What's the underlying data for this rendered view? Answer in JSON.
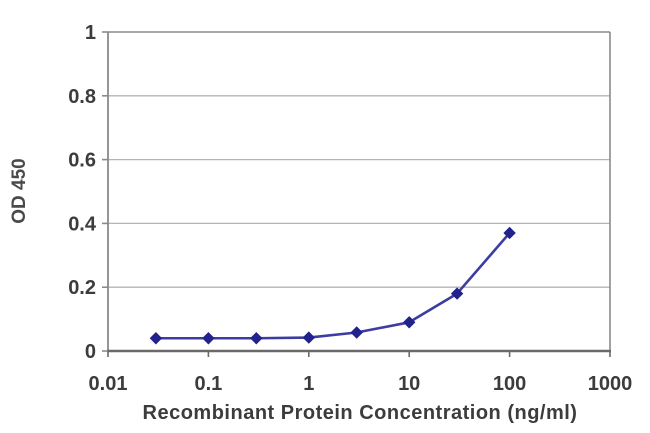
{
  "chart_data": {
    "type": "line",
    "title": "",
    "xlabel": "Recombinant Protein Concentration (ng/ml)",
    "ylabel": "OD 450",
    "x_scale": "log",
    "xlim": [
      0.01,
      1000
    ],
    "ylim": [
      0,
      1
    ],
    "x_ticks": [
      0.01,
      0.1,
      1,
      10,
      100,
      1000
    ],
    "x_tick_labels": [
      "0.01",
      "0.1",
      "1",
      "10",
      "100",
      "1000"
    ],
    "y_ticks": [
      0,
      0.2,
      0.4,
      0.6,
      0.8,
      1
    ],
    "y_tick_labels": [
      "0",
      "0.2",
      "0.4",
      "0.6",
      "0.8",
      "1"
    ],
    "grid": "horizontal-only",
    "legend": "none",
    "series": [
      {
        "name": "OD 450",
        "x": [
          0.03,
          0.1,
          0.3,
          1,
          3,
          10,
          30,
          100
        ],
        "y": [
          0.04,
          0.04,
          0.04,
          0.042,
          0.058,
          0.09,
          0.18,
          0.37
        ],
        "marker": "diamond",
        "line_color": "#3c3ca2",
        "marker_color": "#22228e"
      }
    ],
    "colors": {
      "background": "#ffffff",
      "gridline": "#b4b4b4",
      "plot_border": "#8a8a8a",
      "x_axis_line": "#6a6a6a",
      "tick_text": "#3c3c3c"
    }
  }
}
